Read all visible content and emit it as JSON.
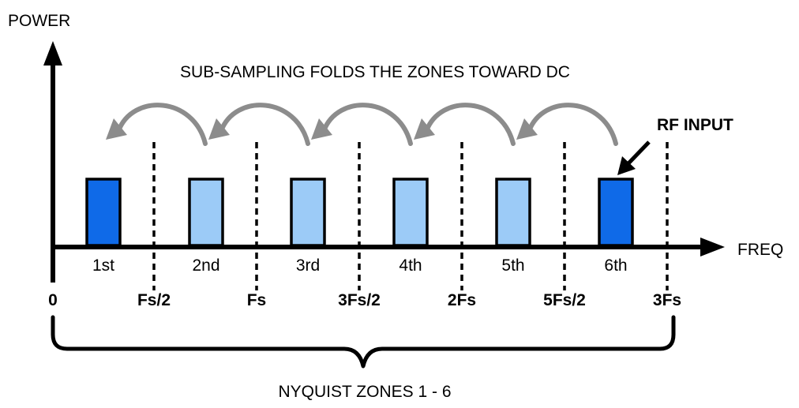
{
  "axes": {
    "y_label": "POWER",
    "x_label": "FREQ"
  },
  "title": "SUB-SAMPLING FOLDS THE ZONES TOWARD DC",
  "rf_input_label": "RF INPUT",
  "zones": [
    {
      "label": "1st",
      "highlight": true
    },
    {
      "label": "2nd",
      "highlight": false
    },
    {
      "label": "3rd",
      "highlight": false
    },
    {
      "label": "4th",
      "highlight": false
    },
    {
      "label": "5th",
      "highlight": false
    },
    {
      "label": "6th",
      "highlight": true
    }
  ],
  "freq_ticks": [
    "0",
    "Fs/2",
    "Fs",
    "3Fs/2",
    "2Fs",
    "5Fs/2",
    "3Fs"
  ],
  "brace_label": "NYQUIST ZONES 1 - 6",
  "colors": {
    "highlight_fill": "#0f6ae8",
    "normal_fill": "#9ccbf7",
    "arrow_gray": "#8c8c8c",
    "axis": "#000000"
  }
}
